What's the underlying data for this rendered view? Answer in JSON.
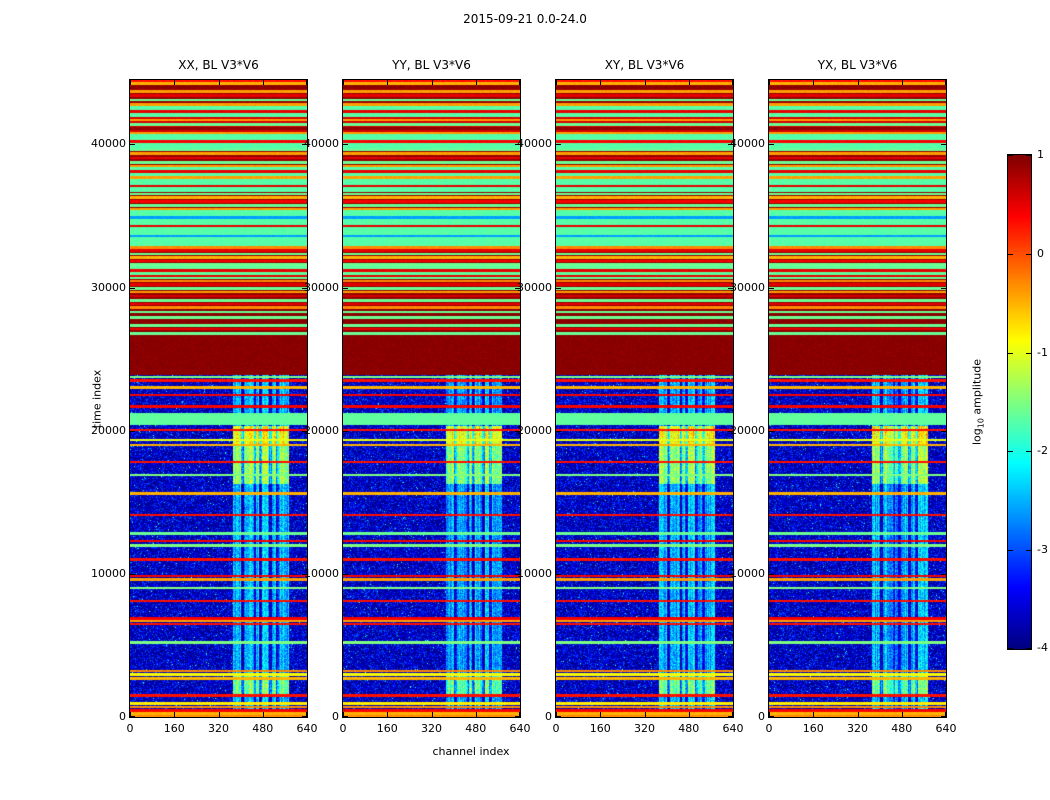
{
  "figure": {
    "title": "2015-09-21 0.0-24.0",
    "xlabel": "channel index",
    "ylabel": "time index",
    "colorbar_label_prefix": "log",
    "colorbar_label_sub": "10",
    "colorbar_label_suffix": " amplitude",
    "background": "#ffffff"
  },
  "chart_data": {
    "type": "heatmap",
    "colormap": "jet",
    "panels": [
      {
        "title": "XX, BL V3*V6",
        "seed": 1
      },
      {
        "title": "YY, BL V3*V6",
        "seed": 2
      },
      {
        "title": "XY, BL V3*V6",
        "seed": 3
      },
      {
        "title": "YX, BL V3*V6",
        "seed": 4
      }
    ],
    "x_axis": {
      "label": "channel index",
      "min": 0,
      "max": 640,
      "ticks": [
        0,
        160,
        320,
        480,
        640
      ]
    },
    "y_axis": {
      "label": "time index",
      "min": 0,
      "max": 44500,
      "ticks": [
        0,
        10000,
        20000,
        30000,
        40000
      ]
    },
    "colorbar": {
      "label": "log10 amplitude",
      "min": -4,
      "max": 1,
      "ticks": [
        1,
        0,
        -1,
        -2,
        -3,
        -4
      ]
    },
    "value_model": {
      "line_half_width": 90,
      "lower_region": {
        "t0": 0,
        "t1": 23900,
        "base_value": -4.0,
        "noise": 0.85,
        "bright_band": {
          "c0": 372,
          "c1": 576,
          "value": -2.5,
          "noise": 1.3,
          "gap_channels": [
            408,
            452,
            472,
            508,
            532
          ],
          "hot_zones": [
            {
              "t0": 1500,
              "t1": 2900,
              "value": -1.6
            },
            {
              "t0": 16300,
              "t1": 19000,
              "value": -1.4
            },
            {
              "t0": 19000,
              "t1": 20350,
              "value": -0.9
            }
          ]
        },
        "green_band": {
          "t0": 20400,
          "t1": 21250,
          "value": -1.65
        },
        "lines": [
          [
            80,
            -0.3
          ],
          [
            250,
            -0.5
          ],
          [
            450,
            0.4
          ],
          [
            700,
            -0.3
          ],
          [
            950,
            -0.8
          ],
          [
            1500,
            0.3
          ],
          [
            2700,
            -0.5
          ],
          [
            2950,
            -0.9
          ],
          [
            3200,
            -0.3
          ],
          [
            5200,
            -1.5
          ],
          [
            6500,
            0.3
          ],
          [
            6700,
            -0.4
          ],
          [
            6900,
            0.4
          ],
          [
            8100,
            0.3
          ],
          [
            9000,
            -1.5
          ],
          [
            9600,
            -0.4
          ],
          [
            9850,
            0.4
          ],
          [
            11000,
            0.3
          ],
          [
            12000,
            -1.5
          ],
          [
            12300,
            0.4
          ],
          [
            12800,
            -1.6
          ],
          [
            14100,
            0.3
          ],
          [
            15600,
            -0.5
          ],
          [
            16900,
            -1.5
          ],
          [
            17800,
            0.3
          ],
          [
            19000,
            -0.5
          ],
          [
            19350,
            -1.0
          ],
          [
            20050,
            0.3
          ],
          [
            21700,
            0.4
          ],
          [
            22500,
            0.4
          ],
          [
            23000,
            -0.5
          ],
          [
            23500,
            0.3
          ],
          [
            23750,
            -1.5
          ]
        ]
      },
      "upper_region": {
        "t0": 23900,
        "t1": 44500,
        "segments": [
          {
            "t0": 23900,
            "t1": 26550,
            "base": 0.95,
            "lines": []
          },
          {
            "t0": 26550,
            "t1": 28500,
            "base": 0.95,
            "lines": [
              [
                26800,
                -1.6
              ],
              [
                27100,
                0.5
              ],
              [
                27350,
                -1.6
              ],
              [
                27900,
                -1.6
              ],
              [
                28300,
                -1.6
              ]
            ]
          },
          {
            "t0": 28500,
            "t1": 30600,
            "base": 0.9,
            "lines": [
              [
                28600,
                -0.3
              ],
              [
                28850,
                0.5
              ],
              [
                29100,
                -1.6
              ],
              [
                29400,
                0.6
              ],
              [
                29700,
                -0.4
              ],
              [
                29950,
                -1.6
              ],
              [
                30200,
                0.5
              ],
              [
                30450,
                -0.3
              ]
            ]
          },
          {
            "t0": 30600,
            "t1": 31500,
            "base": -1.65,
            "lines": [
              [
                30800,
                0.5
              ],
              [
                31200,
                0.5
              ]
            ]
          },
          {
            "t0": 31500,
            "t1": 32900,
            "base": 0.9,
            "lines": [
              [
                31600,
                -1.6
              ],
              [
                31850,
                0.4
              ],
              [
                32100,
                -0.5
              ],
              [
                32350,
                -1.6
              ],
              [
                32600,
                0.5
              ],
              [
                32800,
                -0.3
              ]
            ]
          },
          {
            "t0": 32900,
            "t1": 35400,
            "base": -1.7,
            "lines": [
              [
                33600,
                -2.6
              ],
              [
                34300,
                0.5
              ],
              [
                34900,
                -2.6
              ]
            ]
          },
          {
            "t0": 35400,
            "t1": 36700,
            "base": 0.9,
            "lines": [
              [
                35500,
                -0.4
              ],
              [
                35750,
                -1.6
              ],
              [
                36000,
                0.4
              ],
              [
                36300,
                -0.5
              ],
              [
                36550,
                -1.6
              ]
            ]
          },
          {
            "t0": 36700,
            "t1": 38400,
            "base": -1.7,
            "lines": [
              [
                37100,
                0.5
              ],
              [
                37700,
                -0.4
              ],
              [
                38100,
                0.5
              ]
            ]
          },
          {
            "t0": 38400,
            "t1": 39700,
            "base": 0.9,
            "lines": [
              [
                38500,
                -0.4
              ],
              [
                38750,
                -1.6
              ],
              [
                39050,
                0.5
              ],
              [
                39350,
                -0.4
              ],
              [
                39600,
                -1.6
              ]
            ]
          },
          {
            "t0": 39700,
            "t1": 40700,
            "base": -1.7,
            "lines": [
              [
                40200,
                0.4
              ]
            ]
          },
          {
            "t0": 40700,
            "t1": 41900,
            "base": 0.6,
            "lines": [
              [
                40800,
                -0.4
              ],
              [
                41100,
                0.9
              ],
              [
                41400,
                -1.6
              ],
              [
                41700,
                -0.4
              ]
            ]
          },
          {
            "t0": 41900,
            "t1": 42700,
            "base": -1.7,
            "lines": [
              [
                42300,
                0.5
              ]
            ]
          },
          {
            "t0": 42700,
            "t1": 44500,
            "base": 0.9,
            "lines": [
              [
                42800,
                -0.4
              ],
              [
                43100,
                -1.6
              ],
              [
                43400,
                0.5
              ],
              [
                43700,
                -0.4
              ],
              [
                44000,
                0.95
              ],
              [
                44250,
                -0.5
              ],
              [
                44450,
                0.3
              ]
            ]
          }
        ]
      }
    }
  }
}
